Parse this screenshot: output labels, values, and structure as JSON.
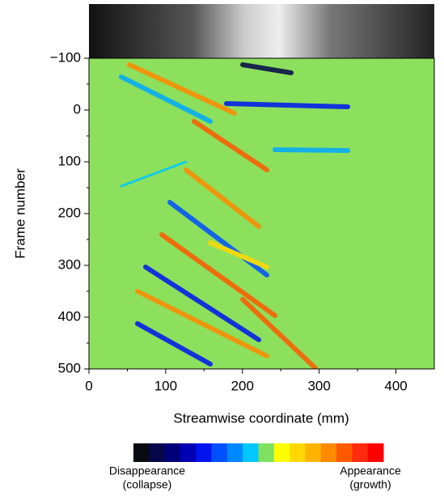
{
  "chart_data": {
    "type": "heatmap",
    "xlabel": "Streamwise coordinate (mm)",
    "ylabel": "Frame number",
    "xlim": [
      0,
      450
    ],
    "xticks": [
      0,
      100,
      200,
      300,
      400
    ],
    "ylim": [
      -100,
      500
    ],
    "yticks": [
      {
        "value": -100,
        "label": "−100"
      },
      0,
      100,
      200,
      300,
      400,
      500
    ],
    "y_inverted": true,
    "background_color": "#8ce05c",
    "colorbar": {
      "colors": [
        "#0a0a12",
        "#06064a",
        "#000078",
        "#0000b4",
        "#0014f0",
        "#0050ff",
        "#0088ff",
        "#00c8ff",
        "#80e060",
        "#ffff00",
        "#ffd800",
        "#ffb400",
        "#ff8a00",
        "#ff5a00",
        "#ff2a10",
        "#ff0000"
      ],
      "low_label": [
        "Disappearance",
        "(collapse)"
      ],
      "high_label": [
        "Appearance",
        "(growth)"
      ]
    }
  }
}
